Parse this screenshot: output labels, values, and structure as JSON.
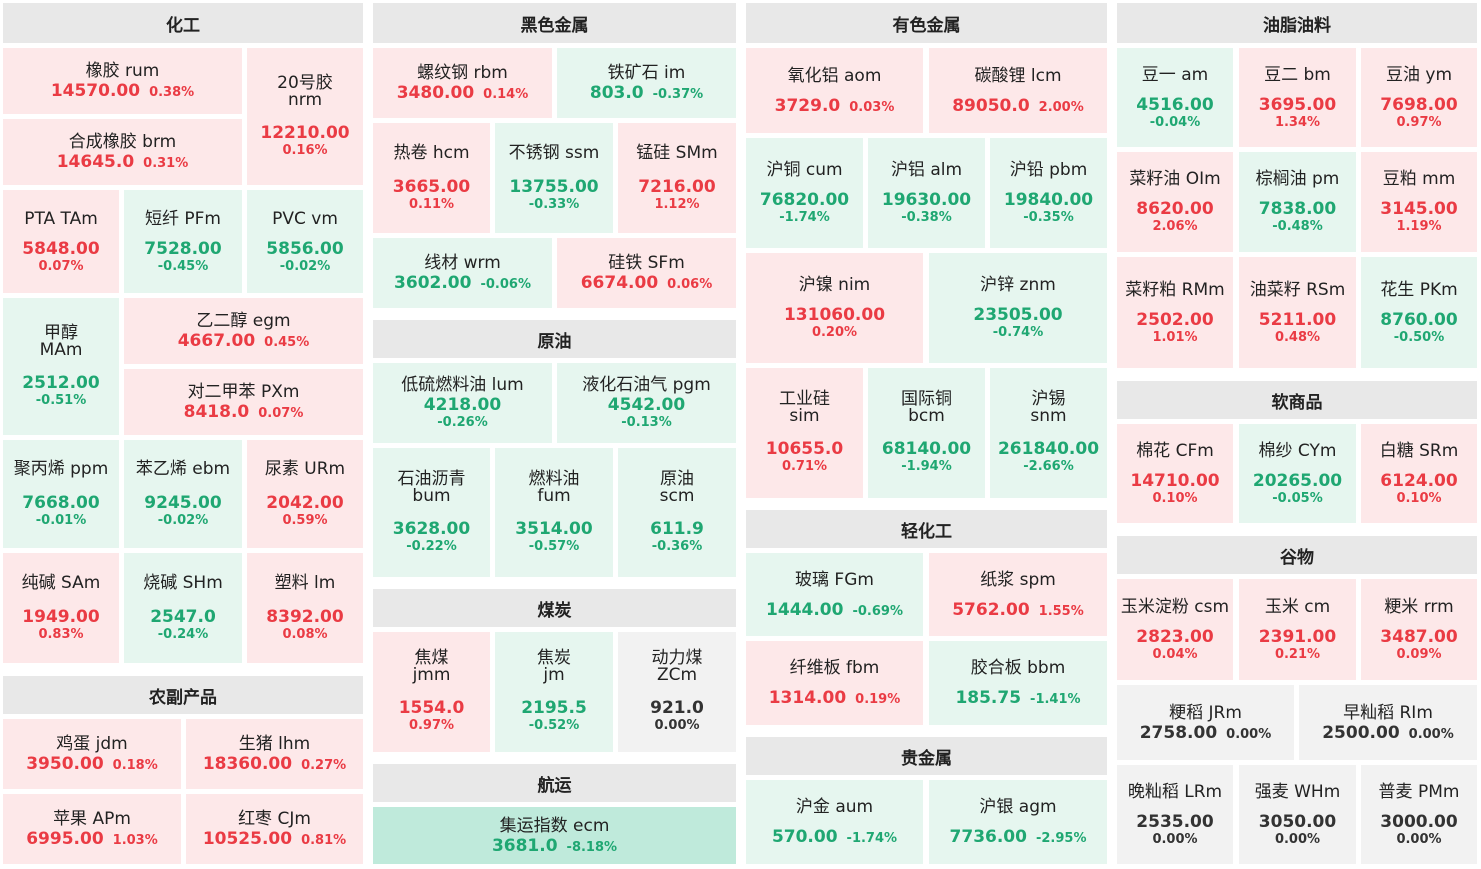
{
  "sections": {
    "chem": "化工",
    "ferrous": "黑色金属",
    "nonferrous": "有色金属",
    "oils": "油脂油料",
    "crude": "原油",
    "coal": "煤炭",
    "shipping": "航运",
    "light": "轻化工",
    "precious": "贵金属",
    "soft": "软商品",
    "grain": "谷物",
    "agri": "农副产品"
  },
  "tiles": {
    "rum": {
      "name": "橡胶 rum",
      "price": "14570.00",
      "change": "0.38%"
    },
    "nrm": {
      "name1": "20号胶",
      "name2": "nrm",
      "price": "12210.00",
      "change": "0.16%"
    },
    "brm": {
      "name": "合成橡胶 brm",
      "price": "14645.0",
      "change": "0.31%"
    },
    "tam": {
      "name": "PTA TAm",
      "price": "5848.00",
      "change": "0.07%"
    },
    "pfm": {
      "name": "短纤 PFm",
      "price": "7528.00",
      "change": "-0.45%"
    },
    "vm": {
      "name": "PVC vm",
      "price": "5856.00",
      "change": "-0.02%"
    },
    "mam": {
      "name1": "甲醇",
      "name2": "MAm",
      "price": "2512.00",
      "change": "-0.51%"
    },
    "egm": {
      "name": "乙二醇 egm",
      "price": "4667.00",
      "change": "0.45%"
    },
    "pxm": {
      "name": "对二甲苯 PXm",
      "price": "8418.0",
      "change": "0.07%"
    },
    "ppm": {
      "name": "聚丙烯 ppm",
      "price": "7668.00",
      "change": "-0.01%"
    },
    "ebm": {
      "name": "苯乙烯 ebm",
      "price": "9245.00",
      "change": "-0.02%"
    },
    "urm": {
      "name": "尿素 URm",
      "price": "2042.00",
      "change": "0.59%"
    },
    "sam": {
      "name": "纯碱 SAm",
      "price": "1949.00",
      "change": "0.83%"
    },
    "shm": {
      "name": "烧碱 SHm",
      "price": "2547.0",
      "change": "-0.24%"
    },
    "lm": {
      "name": "塑料 lm",
      "price": "8392.00",
      "change": "0.08%"
    },
    "jdm": {
      "name": "鸡蛋 jdm",
      "price": "3950.00",
      "change": "0.18%"
    },
    "lhm": {
      "name": "生猪 lhm",
      "price": "18360.00",
      "change": "0.27%"
    },
    "apm": {
      "name": "苹果 APm",
      "price": "6995.00",
      "change": "1.03%"
    },
    "cjm": {
      "name": "红枣 CJm",
      "price": "10525.00",
      "change": "0.81%"
    },
    "rbm": {
      "name": "螺纹钢 rbm",
      "price": "3480.00",
      "change": "0.14%"
    },
    "im": {
      "name": "铁矿石 im",
      "price": "803.0",
      "change": "-0.37%"
    },
    "hcm": {
      "name": "热卷 hcm",
      "price": "3665.00",
      "change": "0.11%"
    },
    "ssm": {
      "name": "不锈钢 ssm",
      "price": "13755.00",
      "change": "-0.33%"
    },
    "smm": {
      "name": "锰硅 SMm",
      "price": "7216.00",
      "change": "1.12%"
    },
    "wrm": {
      "name": "线材 wrm",
      "price": "3602.00",
      "change": "-0.06%"
    },
    "sfm": {
      "name": "硅铁 SFm",
      "price": "6674.00",
      "change": "0.06%"
    },
    "lum": {
      "name": "低硫燃料油 lum",
      "price": "4218.00",
      "change": "-0.26%"
    },
    "pgm": {
      "name": "液化石油气 pgm",
      "price": "4542.00",
      "change": "-0.13%"
    },
    "bum": {
      "name1": "石油沥青",
      "name2": "bum",
      "price": "3628.00",
      "change": "-0.22%"
    },
    "fum": {
      "name1": "燃料油",
      "name2": "fum",
      "price": "3514.00",
      "change": "-0.57%"
    },
    "scm": {
      "name1": "原油",
      "name2": "scm",
      "price": "611.9",
      "change": "-0.36%"
    },
    "jmm": {
      "name1": "焦煤",
      "name2": "jmm",
      "price": "1554.0",
      "change": "0.97%"
    },
    "jm": {
      "name1": "焦炭",
      "name2": "jm",
      "price": "2195.5",
      "change": "-0.52%"
    },
    "zcm": {
      "name1": "动力煤",
      "name2": "ZCm",
      "price": "921.0",
      "change": "0.00%"
    },
    "ecm": {
      "name": "集运指数 ecm",
      "price": "3681.0",
      "change": "-8.18%"
    },
    "aom": {
      "name": "氧化铝 aom",
      "price": "3729.0",
      "change": "0.03%"
    },
    "lcm": {
      "name": "碳酸锂 lcm",
      "price": "89050.0",
      "change": "2.00%"
    },
    "cum": {
      "name": "沪铜 cum",
      "price": "76820.00",
      "change": "-1.74%"
    },
    "alm": {
      "name": "沪铝 alm",
      "price": "19630.00",
      "change": "-0.38%"
    },
    "pbm": {
      "name": "沪铅 pbm",
      "price": "19840.00",
      "change": "-0.35%"
    },
    "nim": {
      "name": "沪镍 nim",
      "price": "131060.00",
      "change": "0.20%"
    },
    "znm": {
      "name": "沪锌 znm",
      "price": "23505.00",
      "change": "-0.74%"
    },
    "sim": {
      "name1": "工业硅",
      "name2": "sim",
      "price": "10655.0",
      "change": "0.71%"
    },
    "bcm": {
      "name1": "国际铜",
      "name2": "bcm",
      "price": "68140.00",
      "change": "-1.94%"
    },
    "snm": {
      "name1": "沪锡",
      "name2": "snm",
      "price": "261840.00",
      "change": "-2.66%"
    },
    "fgm": {
      "name": "玻璃 FGm",
      "price": "1444.00",
      "change": "-0.69%"
    },
    "spm": {
      "name": "纸浆 spm",
      "price": "5762.00",
      "change": "1.55%"
    },
    "fbm": {
      "name": "纤维板 fbm",
      "price": "1314.00",
      "change": "0.19%"
    },
    "bbm": {
      "name": "胶合板 bbm",
      "price": "185.75",
      "change": "-1.41%"
    },
    "aum": {
      "name": "沪金 aum",
      "price": "570.00",
      "change": "-1.74%"
    },
    "agm": {
      "name": "沪银 agm",
      "price": "7736.00",
      "change": "-2.95%"
    },
    "am": {
      "name": "豆一 am",
      "price": "4516.00",
      "change": "-0.04%"
    },
    "bm": {
      "name": "豆二 bm",
      "price": "3695.00",
      "change": "1.34%"
    },
    "ym": {
      "name": "豆油 ym",
      "price": "7698.00",
      "change": "0.97%"
    },
    "oim": {
      "name": "菜籽油 OIm",
      "price": "8620.00",
      "change": "2.06%"
    },
    "pm": {
      "name": "棕榈油 pm",
      "price": "7838.00",
      "change": "-0.48%"
    },
    "mm": {
      "name": "豆粕 mm",
      "price": "3145.00",
      "change": "1.19%"
    },
    "rmm": {
      "name": "菜籽粕 RMm",
      "price": "2502.00",
      "change": "1.01%"
    },
    "rsm": {
      "name": "油菜籽 RSm",
      "price": "5211.00",
      "change": "0.48%"
    },
    "pkm": {
      "name": "花生 PKm",
      "price": "8760.00",
      "change": "-0.50%"
    },
    "cfm": {
      "name": "棉花 CFm",
      "price": "14710.00",
      "change": "0.10%"
    },
    "cym": {
      "name": "棉纱 CYm",
      "price": "20265.00",
      "change": "-0.05%"
    },
    "srm": {
      "name": "白糖 SRm",
      "price": "6124.00",
      "change": "0.10%"
    },
    "csm": {
      "name": "玉米淀粉 csm",
      "price": "2823.00",
      "change": "0.04%"
    },
    "cm": {
      "name": "玉米 cm",
      "price": "2391.00",
      "change": "0.21%"
    },
    "rrm": {
      "name": "粳米 rrm",
      "price": "3487.00",
      "change": "0.09%"
    },
    "jrm": {
      "name": "粳稻 JRm",
      "price": "2758.00",
      "change": "0.00%"
    },
    "rim": {
      "name": "早籼稻 RIm",
      "price": "2500.00",
      "change": "0.00%"
    },
    "lrm": {
      "name": "晚籼稻 LRm",
      "price": "2535.00",
      "change": "0.00%"
    },
    "whm": {
      "name": "强麦 WHm",
      "price": "3050.00",
      "change": "0.00%"
    },
    "pmm": {
      "name": "普麦 PMm",
      "price": "3000.00",
      "change": "0.00%"
    }
  }
}
